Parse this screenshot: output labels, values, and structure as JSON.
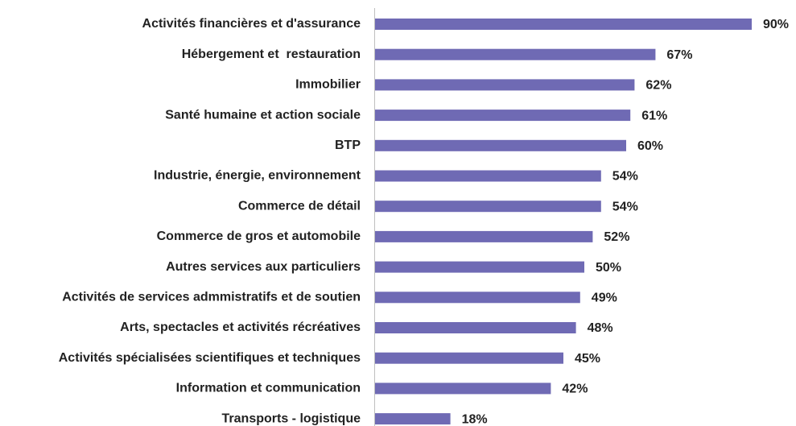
{
  "chart_data": {
    "type": "bar",
    "orientation": "horizontal",
    "color": "#6f6ab4",
    "categories": [
      "Activités financières et d'assurance",
      "Hébergement et  restauration",
      "Immobilier",
      "Santé humaine et action sociale",
      "BTP",
      "Industrie, énergie, environnement",
      "Commerce de détail",
      "Commerce de gros et automobile",
      "Autres services aux particuliers",
      "Activités de services admmistratifs et de soutien",
      "Arts, spectacles et activités récréatives",
      "Activités spécialisées scientifiques et techniques",
      "Information et communication",
      "Transports - logistique"
    ],
    "values": [
      90,
      67,
      62,
      61,
      60,
      54,
      54,
      52,
      50,
      49,
      48,
      45,
      42,
      18
    ],
    "value_labels": [
      "90%",
      "67%",
      "62%",
      "61%",
      "60%",
      "54%",
      "54%",
      "52%",
      "50%",
      "49%",
      "48%",
      "45%",
      "42%",
      "18%"
    ]
  }
}
